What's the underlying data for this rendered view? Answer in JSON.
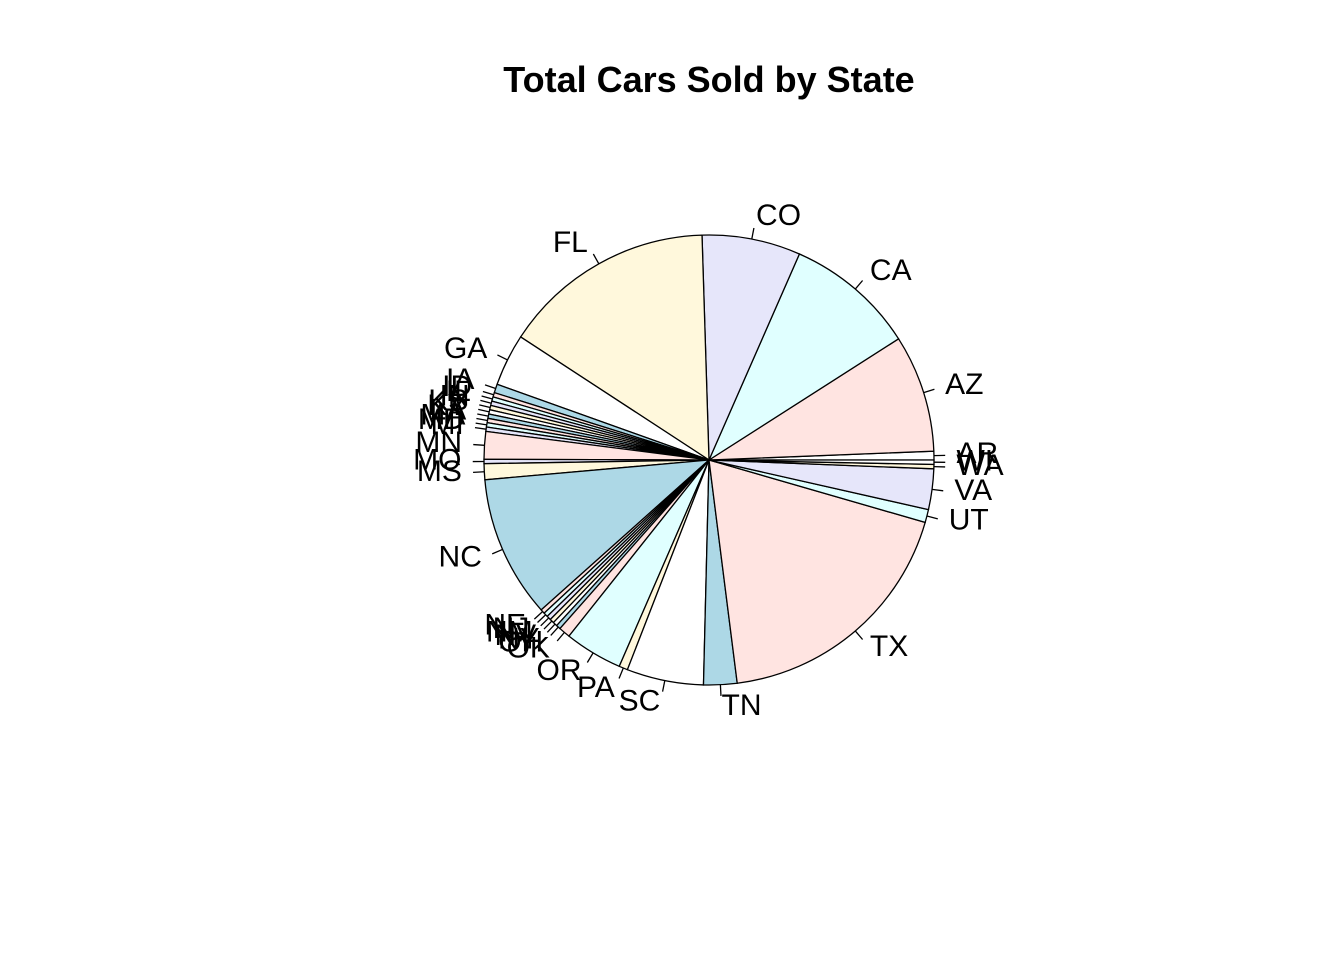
{
  "chart_data": {
    "type": "pie",
    "title": "Total Cars Sold by State",
    "categories": [
      "AR",
      "AZ",
      "CA",
      "CO",
      "FL",
      "GA",
      "IA",
      "ID",
      "IL",
      "IN",
      "KS",
      "KY",
      "LA",
      "MA",
      "MD",
      "MI",
      "MN",
      "MO",
      "MS",
      "NC",
      "NE",
      "NJ",
      "NM",
      "NV",
      "NY",
      "OH",
      "OK",
      "OR",
      "PA",
      "SC",
      "TN",
      "TX",
      "UT",
      "VA",
      "WA",
      "WI"
    ],
    "values": [
      0.6,
      8.1,
      9.0,
      6.8,
      14.7,
      3.6,
      0.6,
      0.3,
      0.3,
      0.3,
      0.3,
      0.3,
      0.3,
      0.3,
      0.3,
      0.3,
      1.9,
      0.3,
      1.1,
      9.8,
      0.3,
      0.3,
      0.3,
      0.3,
      0.3,
      0.3,
      0.8,
      4.0,
      0.6,
      5.3,
      2.3,
      17.8,
      0.9,
      2.8,
      0.3,
      0.3
    ],
    "colors": [
      "#ffffff",
      "#ffe4e1",
      "#e0ffff",
      "#e6e6fa",
      "#fff8dc",
      "#ffffff",
      "#add8e6",
      "#ffe4e1",
      "#e0ffff",
      "#e6e6fa",
      "#fff8dc",
      "#ffffff",
      "#add8e6",
      "#ffe4e1",
      "#e0ffff",
      "#e6e6fa",
      "#ffe4e1",
      "#e6e6fa",
      "#fff8dc",
      "#add8e6",
      "#ffe4e1",
      "#e0ffff",
      "#e6e6fa",
      "#fff8dc",
      "#ffffff",
      "#add8e6",
      "#ffe4e1",
      "#e0ffff",
      "#fff8dc",
      "#ffffff",
      "#add8e6",
      "#ffe4e1",
      "#e0ffff",
      "#e6e6fa",
      "#fff8dc",
      "#ffffff"
    ],
    "start_angle": "counterclockwise from 3 o'clock",
    "legend": "none"
  }
}
